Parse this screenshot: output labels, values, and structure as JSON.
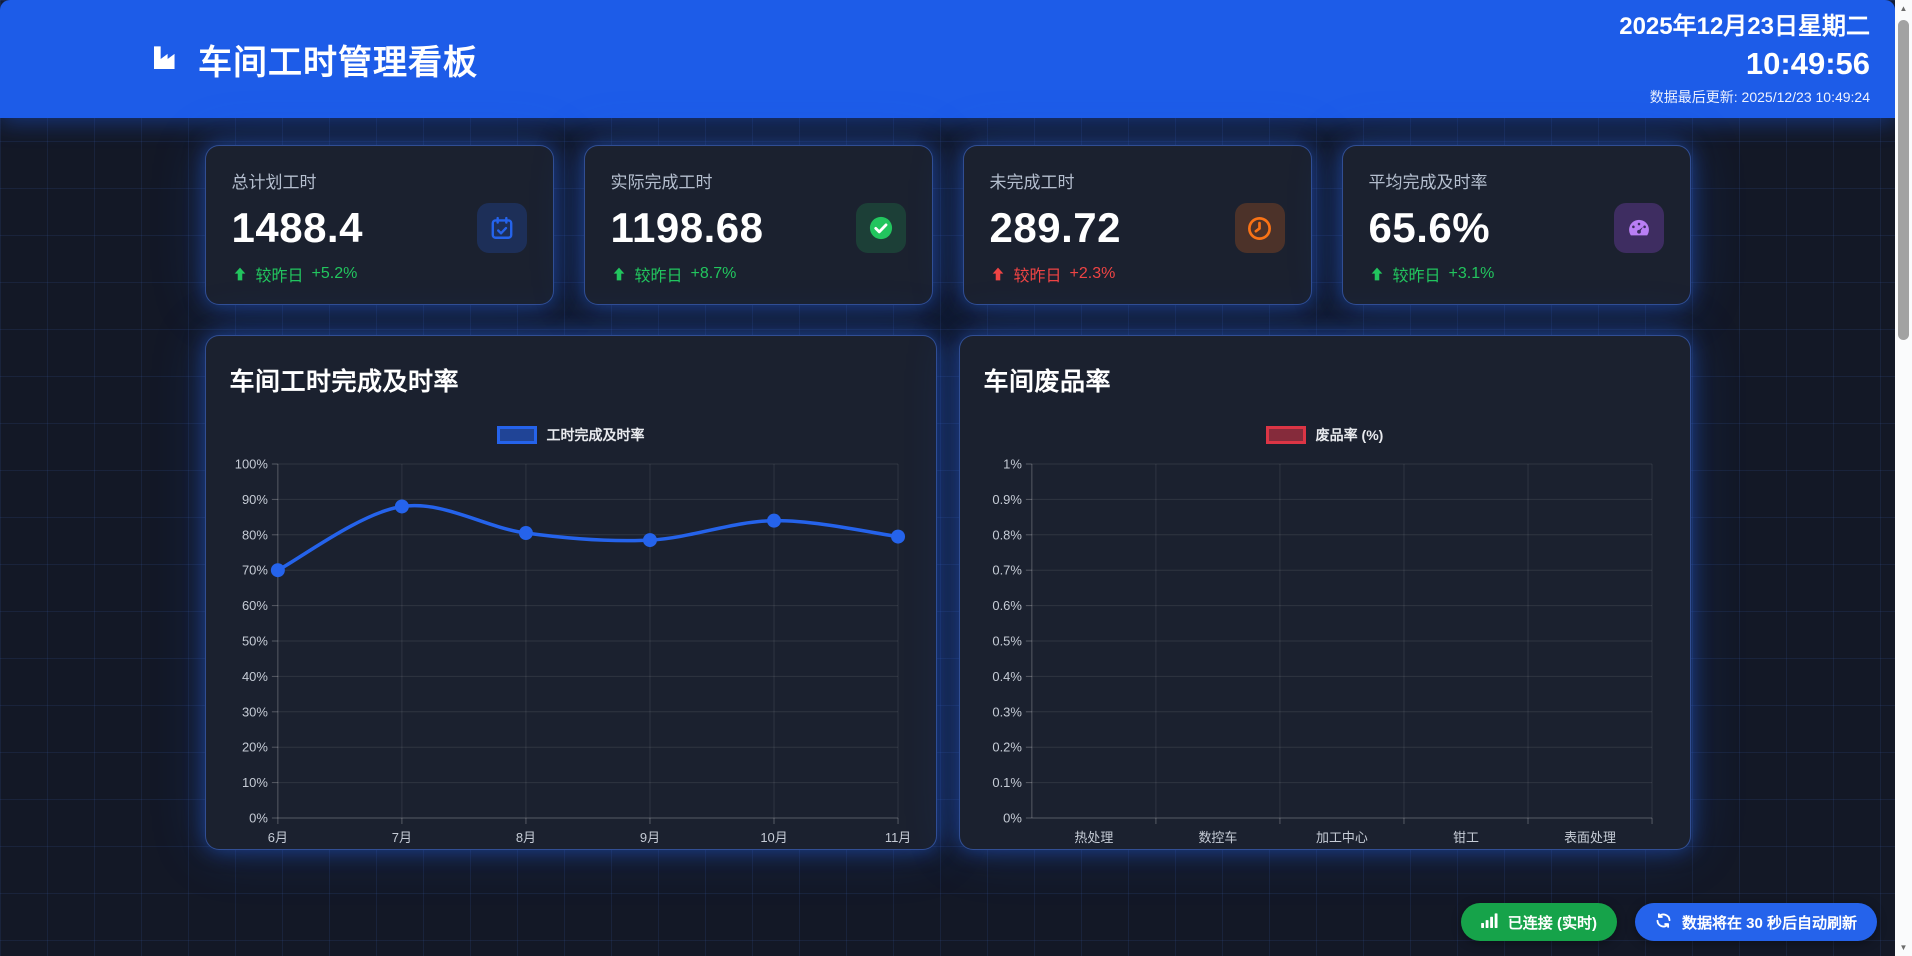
{
  "header": {
    "title": "车间工时管理看板",
    "title_icon": "factory-icon",
    "date": "2025年12月23日星期二",
    "time": "10:49:56",
    "last_update": "数据最后更新: 2025/12/23 10:49:24",
    "bg_color": "#1d5ce8"
  },
  "stats": [
    {
      "label": "总计划工时",
      "value": "1488.4",
      "icon": "calendar-check-icon",
      "icon_color": "#2563eb",
      "chip_bg": "rgba(37,99,235,0.22)",
      "trend_label": "较昨日",
      "trend_value": "+5.2%",
      "trend_direction": "up",
      "trend_color": "#22c55e"
    },
    {
      "label": "实际完成工时",
      "value": "1198.68",
      "icon": "check-circle-icon",
      "icon_color": "#22c55e",
      "chip_bg": "rgba(34,197,94,0.18)",
      "trend_label": "较昨日",
      "trend_value": "+8.7%",
      "trend_direction": "up",
      "trend_color": "#22c55e"
    },
    {
      "label": "未完成工时",
      "value": "289.72",
      "icon": "clock-icon",
      "icon_color": "#f97316",
      "chip_bg": "rgba(249,115,22,0.22)",
      "trend_label": "较昨日",
      "trend_value": "+2.3%",
      "trend_direction": "up",
      "trend_color": "#ef4444"
    },
    {
      "label": "平均完成及时率",
      "value": "65.6%",
      "icon": "gauge-icon",
      "icon_color": "#c084fc",
      "chip_bg": "rgba(168,85,247,0.25)",
      "trend_label": "较昨日",
      "trend_value": "+3.1%",
      "trend_direction": "up",
      "trend_color": "#22c55e"
    }
  ],
  "chart_data": [
    {
      "type": "line",
      "title": "车间工时完成及时率",
      "legend": "工时完成及时率",
      "categories": [
        "6月",
        "7月",
        "8月",
        "9月",
        "10月",
        "11月"
      ],
      "values": [
        70,
        88,
        80.5,
        78.5,
        84,
        79.5
      ],
      "ylim": [
        0,
        100
      ],
      "ytick_step": 10,
      "ytick_suffix": "%",
      "grid": true,
      "legend_position": "top-center",
      "color": "#2563eb"
    },
    {
      "type": "bar",
      "title": "车间废品率",
      "legend": "废品率 (%)",
      "categories": [
        "热处理",
        "数控车",
        "加工中心",
        "钳工",
        "表面处理"
      ],
      "values": [
        0,
        0,
        0,
        0,
        0
      ],
      "ylim": [
        0,
        1
      ],
      "ytick_step": 0.1,
      "ytick_suffix": "%",
      "grid": true,
      "legend_position": "top-center",
      "color": "#dc3545"
    }
  ],
  "footer": {
    "connection_label": "已连接 (实时)",
    "connection_icon": "signal-bars-icon",
    "connection_color": "#16a34a",
    "refresh_label": "数据将在 30 秒后自动刷新",
    "refresh_icon": "refresh-icon",
    "refresh_color": "#2563eb"
  }
}
